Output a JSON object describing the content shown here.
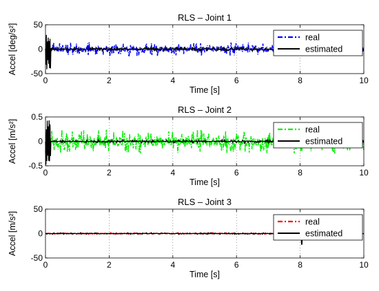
{
  "chart_data": [
    {
      "type": "line",
      "title": "RLS – Joint 1",
      "xlabel": "Time [s]",
      "ylabel": "Accel [deg/s²]",
      "xlim": [
        0,
        10
      ],
      "ylim": [
        -50,
        50
      ],
      "xticks": [
        "0",
        "2",
        "4",
        "6",
        "8",
        "10"
      ],
      "yticks": [
        "-50",
        "0",
        "50"
      ],
      "grid": "vertical dotted",
      "legend": "top-right",
      "series": [
        {
          "name": "real",
          "color": "#0000ff",
          "style": "dash-dot",
          "noise_amplitude": 14,
          "spike_range": [
            0,
            0.15
          ]
        },
        {
          "name": "estimated",
          "color": "#000000",
          "style": "solid",
          "noise_amplitude": 4,
          "spike_range": [
            -42,
            30
          ]
        }
      ]
    },
    {
      "type": "line",
      "title": "RLS – Joint 2",
      "xlabel": "Time [s]",
      "ylabel": "Accel [m/s²]",
      "xlim": [
        0,
        10
      ],
      "ylim": [
        -0.5,
        0.5
      ],
      "xticks": [
        "0",
        "2",
        "4",
        "6",
        "8",
        "10"
      ],
      "yticks": [
        "-0.5",
        "0",
        "0.5"
      ],
      "grid": "vertical dotted",
      "legend": "top-right",
      "series": [
        {
          "name": "real",
          "color": "#00ee00",
          "style": "dash-dot",
          "noise_amplitude": 0.25
        },
        {
          "name": "estimated",
          "color": "#000000",
          "style": "solid",
          "noise_amplitude": 0.03,
          "spike_range": [
            -0.48,
            0.45
          ]
        }
      ]
    },
    {
      "type": "line",
      "title": "RLS – Joint 3",
      "xlabel": "Time [s]",
      "ylabel": "Accel [m/s²]",
      "xlim": [
        0,
        10
      ],
      "ylim": [
        -50,
        50
      ],
      "xticks": [
        "0",
        "2",
        "4",
        "6",
        "8",
        "10"
      ],
      "yticks": [
        "-50",
        "0",
        "50"
      ],
      "grid": "vertical dotted",
      "legend": "top-right",
      "series": [
        {
          "name": "real",
          "color": "#ff0000",
          "style": "dash-dot",
          "noise_amplitude": 1.5
        },
        {
          "name": "estimated",
          "color": "#000000",
          "style": "solid",
          "noise_amplitude": 1.5,
          "dip_at": 8.05,
          "dip_value": -22
        }
      ]
    }
  ]
}
